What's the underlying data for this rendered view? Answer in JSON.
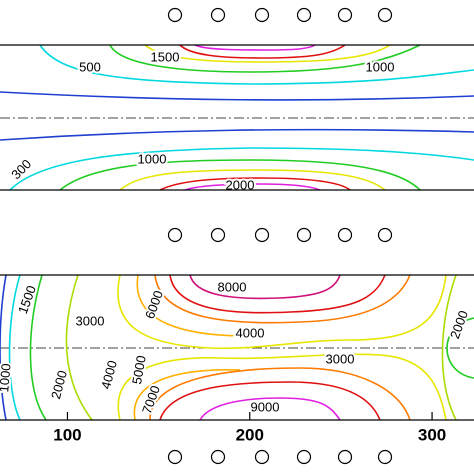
{
  "chart_data": [
    {
      "type": "contour",
      "levels": [
        300,
        500,
        1000,
        1500,
        2000
      ],
      "colors": [
        "#00d8e0",
        "#22cc22",
        "#e6e600",
        "#e01010",
        "#e020e0"
      ]
    },
    {
      "type": "contour",
      "levels": [
        1000,
        1500,
        2000,
        3000,
        4000,
        5000,
        6000,
        7000,
        8000,
        9000
      ],
      "colors": [
        "#1f3fd0",
        "#00d8e0",
        "#22cc22",
        "#aadd00",
        "#e6e600",
        "#ffb000",
        "#ff7a00",
        "#e01010",
        "#d0107a",
        "#e020e0"
      ],
      "xlim": [
        63,
        323
      ],
      "xticks": [
        100,
        200,
        300
      ]
    }
  ]
}
